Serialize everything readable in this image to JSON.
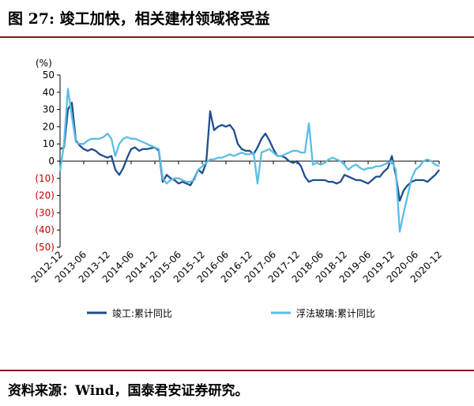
{
  "title": "图 27: 竣工加快，相关建材领域将受益",
  "source": "资料来源：Wind，国泰君安证券研究。",
  "chart_data": {
    "type": "line",
    "unit_label": "(%)",
    "ylim": [
      -50,
      50
    ],
    "y_ticks": [
      {
        "value": 50,
        "label": "50"
      },
      {
        "value": 40,
        "label": "40"
      },
      {
        "value": 30,
        "label": "30"
      },
      {
        "value": 20,
        "label": "20"
      },
      {
        "value": 10,
        "label": "10"
      },
      {
        "value": 0,
        "label": "0"
      },
      {
        "value": -10,
        "label": "(10)"
      },
      {
        "value": -20,
        "label": "(20)"
      },
      {
        "value": -30,
        "label": "(30)"
      },
      {
        "value": -40,
        "label": "(40)"
      },
      {
        "value": -50,
        "label": "(50)"
      }
    ],
    "x_range": [
      "2012-12",
      "2020-12"
    ],
    "x_ticks": [
      "2012-12",
      "2013-06",
      "2013-12",
      "2014-06",
      "2014-12",
      "2015-06",
      "2015-12",
      "2016-06",
      "2016-12",
      "2017-06",
      "2017-12",
      "2018-06",
      "2018-12",
      "2019-06",
      "2019-12",
      "2020-06",
      "2020-12"
    ],
    "grid": false,
    "legend_position": "bottom",
    "colors": {
      "positive_tick": "#000000",
      "negative_tick": "#c00000"
    },
    "series": [
      {
        "name": "竣工:累计同比",
        "color": "#1f4e8c",
        "points": [
          [
            "2012-12",
            7
          ],
          [
            "2013-01",
            8
          ],
          [
            "2013-02",
            30
          ],
          [
            "2013-03",
            34
          ],
          [
            "2013-04",
            12
          ],
          [
            "2013-05",
            9
          ],
          [
            "2013-06",
            7
          ],
          [
            "2013-07",
            6
          ],
          [
            "2013-08",
            7
          ],
          [
            "2013-09",
            6
          ],
          [
            "2013-10",
            4
          ],
          [
            "2013-11",
            3
          ],
          [
            "2013-12",
            2
          ],
          [
            "2014-01",
            3
          ],
          [
            "2014-02",
            -5
          ],
          [
            "2014-03",
            -8
          ],
          [
            "2014-04",
            -4
          ],
          [
            "2014-05",
            2
          ],
          [
            "2014-06",
            7
          ],
          [
            "2014-07",
            8
          ],
          [
            "2014-08",
            6
          ],
          [
            "2014-09",
            7
          ],
          [
            "2014-10",
            7
          ],
          [
            "2014-11",
            7.5
          ],
          [
            "2014-12",
            8
          ],
          [
            "2015-01",
            6
          ],
          [
            "2015-02",
            -12
          ],
          [
            "2015-03",
            -8
          ],
          [
            "2015-04",
            -10
          ],
          [
            "2015-05",
            -11
          ],
          [
            "2015-06",
            -13
          ],
          [
            "2015-07",
            -12
          ],
          [
            "2015-08",
            -13
          ],
          [
            "2015-09",
            -14
          ],
          [
            "2015-10",
            -10
          ],
          [
            "2015-11",
            -5
          ],
          [
            "2015-12",
            -7
          ],
          [
            "2016-01",
            -1
          ],
          [
            "2016-02",
            29
          ],
          [
            "2016-03",
            18
          ],
          [
            "2016-04",
            20
          ],
          [
            "2016-05",
            21
          ],
          [
            "2016-06",
            20
          ],
          [
            "2016-07",
            21
          ],
          [
            "2016-08",
            18
          ],
          [
            "2016-09",
            10
          ],
          [
            "2016-10",
            7
          ],
          [
            "2016-11",
            6
          ],
          [
            "2016-12",
            6
          ],
          [
            "2017-01",
            4
          ],
          [
            "2017-02",
            8
          ],
          [
            "2017-03",
            13
          ],
          [
            "2017-04",
            16
          ],
          [
            "2017-05",
            12
          ],
          [
            "2017-06",
            7
          ],
          [
            "2017-07",
            3
          ],
          [
            "2017-08",
            3
          ],
          [
            "2017-09",
            2
          ],
          [
            "2017-10",
            0
          ],
          [
            "2017-11",
            -1
          ],
          [
            "2017-12",
            0
          ],
          [
            "2018-01",
            -3
          ],
          [
            "2018-02",
            -9
          ],
          [
            "2018-03",
            -12
          ],
          [
            "2018-04",
            -11
          ],
          [
            "2018-05",
            -11
          ],
          [
            "2018-06",
            -11
          ],
          [
            "2018-07",
            -11
          ],
          [
            "2018-08",
            -12
          ],
          [
            "2018-09",
            -12
          ],
          [
            "2018-10",
            -13
          ],
          [
            "2018-11",
            -12
          ],
          [
            "2018-12",
            -8
          ],
          [
            "2019-01",
            -9
          ],
          [
            "2019-02",
            -10
          ],
          [
            "2019-03",
            -11
          ],
          [
            "2019-04",
            -11
          ],
          [
            "2019-05",
            -12
          ],
          [
            "2019-06",
            -13
          ],
          [
            "2019-07",
            -11
          ],
          [
            "2019-08",
            -9
          ],
          [
            "2019-09",
            -9
          ],
          [
            "2019-10",
            -6
          ],
          [
            "2019-11",
            -4
          ],
          [
            "2019-12",
            3
          ],
          [
            "2020-01",
            -8
          ],
          [
            "2020-02",
            -23
          ],
          [
            "2020-03",
            -17
          ],
          [
            "2020-04",
            -14
          ],
          [
            "2020-05",
            -12
          ],
          [
            "2020-06",
            -11
          ],
          [
            "2020-07",
            -11
          ],
          [
            "2020-08",
            -11
          ],
          [
            "2020-09",
            -12
          ],
          [
            "2020-10",
            -10
          ],
          [
            "2020-11",
            -8
          ],
          [
            "2020-12",
            -5
          ]
        ]
      },
      {
        "name": "浮法玻璃:累计同比",
        "color": "#5bbde6",
        "points": [
          [
            "2012-12",
            -6
          ],
          [
            "2013-01",
            10
          ],
          [
            "2013-02",
            42
          ],
          [
            "2013-03",
            26
          ],
          [
            "2013-04",
            11
          ],
          [
            "2013-05",
            10
          ],
          [
            "2013-06",
            10
          ],
          [
            "2013-07",
            12
          ],
          [
            "2013-08",
            13
          ],
          [
            "2013-09",
            13
          ],
          [
            "2013-10",
            13
          ],
          [
            "2013-11",
            14
          ],
          [
            "2013-12",
            16
          ],
          [
            "2014-01",
            13
          ],
          [
            "2014-02",
            3
          ],
          [
            "2014-03",
            10
          ],
          [
            "2014-04",
            13
          ],
          [
            "2014-05",
            14
          ],
          [
            "2014-06",
            13
          ],
          [
            "2014-07",
            13
          ],
          [
            "2014-08",
            12
          ],
          [
            "2014-09",
            11
          ],
          [
            "2014-10",
            10
          ],
          [
            "2014-11",
            9
          ],
          [
            "2014-12",
            8
          ],
          [
            "2015-01",
            7
          ],
          [
            "2015-02",
            -10
          ],
          [
            "2015-03",
            -13
          ],
          [
            "2015-04",
            -11
          ],
          [
            "2015-05",
            -10
          ],
          [
            "2015-06",
            -10
          ],
          [
            "2015-07",
            -11
          ],
          [
            "2015-08",
            -12
          ],
          [
            "2015-09",
            -12
          ],
          [
            "2015-10",
            -11
          ],
          [
            "2015-11",
            -5
          ],
          [
            "2015-12",
            -3
          ],
          [
            "2016-01",
            -1
          ],
          [
            "2016-02",
            1
          ],
          [
            "2016-03",
            1
          ],
          [
            "2016-04",
            2
          ],
          [
            "2016-05",
            2
          ],
          [
            "2016-06",
            3
          ],
          [
            "2016-07",
            4
          ],
          [
            "2016-08",
            3
          ],
          [
            "2016-09",
            4
          ],
          [
            "2016-10",
            5
          ],
          [
            "2016-11",
            4
          ],
          [
            "2016-12",
            4
          ],
          [
            "2017-01",
            5
          ],
          [
            "2017-02",
            -13
          ],
          [
            "2017-03",
            5
          ],
          [
            "2017-04",
            6
          ],
          [
            "2017-05",
            7
          ],
          [
            "2017-06",
            5
          ],
          [
            "2017-07",
            3
          ],
          [
            "2017-08",
            3
          ],
          [
            "2017-09",
            4
          ],
          [
            "2017-10",
            5
          ],
          [
            "2017-11",
            6
          ],
          [
            "2017-12",
            6
          ],
          [
            "2018-01",
            5
          ],
          [
            "2018-02",
            5
          ],
          [
            "2018-03",
            22
          ],
          [
            "2018-04",
            -2
          ],
          [
            "2018-05",
            -1
          ],
          [
            "2018-06",
            -2
          ],
          [
            "2018-07",
            -1
          ],
          [
            "2018-08",
            1
          ],
          [
            "2018-09",
            2
          ],
          [
            "2018-10",
            1
          ],
          [
            "2018-11",
            0
          ],
          [
            "2018-12",
            -2
          ],
          [
            "2019-01",
            -5
          ],
          [
            "2019-02",
            -3
          ],
          [
            "2019-03",
            -2
          ],
          [
            "2019-04",
            -4
          ],
          [
            "2019-05",
            -5
          ],
          [
            "2019-06",
            -4
          ],
          [
            "2019-07",
            -4
          ],
          [
            "2019-08",
            -3
          ],
          [
            "2019-09",
            -3
          ],
          [
            "2019-10",
            -2
          ],
          [
            "2019-11",
            -1
          ],
          [
            "2019-12",
            0
          ],
          [
            "2020-01",
            -5
          ],
          [
            "2020-02",
            -41
          ],
          [
            "2020-03",
            -30
          ],
          [
            "2020-04",
            -20
          ],
          [
            "2020-05",
            -10
          ],
          [
            "2020-06",
            -5
          ],
          [
            "2020-07",
            -3
          ],
          [
            "2020-08",
            0
          ],
          [
            "2020-09",
            1
          ],
          [
            "2020-10",
            0
          ],
          [
            "2020-11",
            -2
          ],
          [
            "2020-12",
            -3
          ]
        ]
      }
    ]
  }
}
